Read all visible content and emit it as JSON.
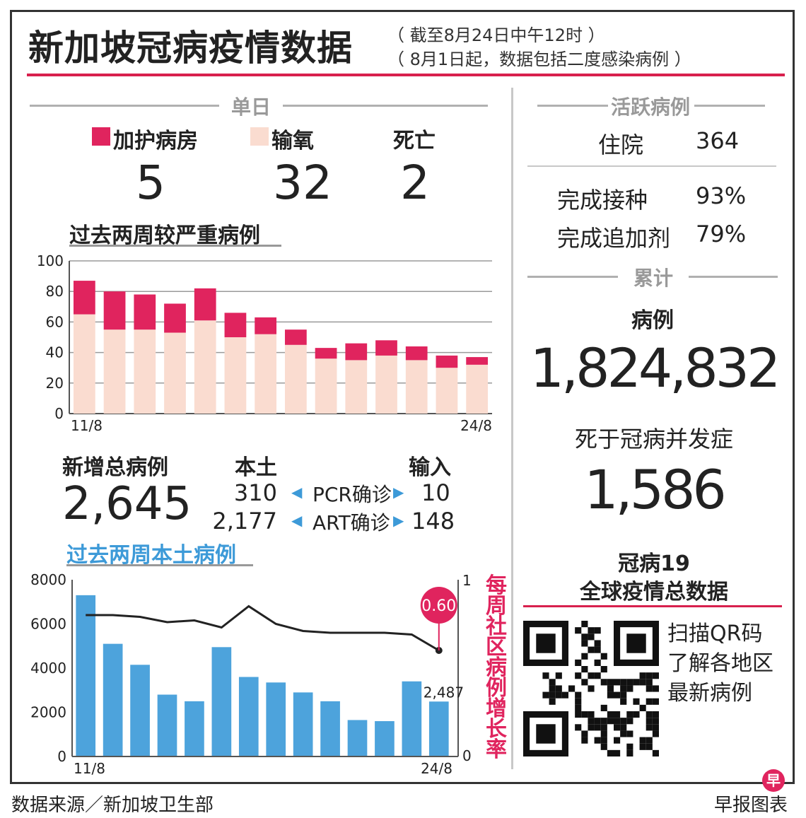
{
  "header": {
    "title": "新加坡冠病疫情数据",
    "sub1": "（ 截至8月24日中午12时 ）",
    "sub2": "（ 8月1日起，数据包括二度感染病例 ）"
  },
  "daily": {
    "heading": "单日",
    "items": [
      {
        "label": "加护病房",
        "value": "5"
      },
      {
        "label": "输氧",
        "value": "32"
      },
      {
        "label": "死亡",
        "value": "2"
      }
    ]
  },
  "severe_chart_title": "过去两周较严重病例",
  "new_cases": {
    "label": "新增总病例",
    "value": "2,645",
    "local_label": "本土",
    "import_label": "输入",
    "rows": [
      {
        "local": "310",
        "type": "PCR确诊",
        "import": "10"
      },
      {
        "local": "2,177",
        "type": "ART确诊",
        "import": "148"
      }
    ]
  },
  "local_chart_title": "过去两周本土病例",
  "growth_label": "每周社区病例增长率",
  "active": {
    "heading": "活跃病例",
    "hospital_label": "住院",
    "hospital_value": "364",
    "vacc_label": "完成接种",
    "vacc_value": "93%",
    "booster_label": "完成追加剂",
    "booster_value": "79%"
  },
  "cumulative": {
    "heading": "累计",
    "cases_label": "病例",
    "cases_value": "1,824,832",
    "deaths_label": "死于冠病并发症",
    "deaths_value": "1,586"
  },
  "global": {
    "line1": "冠病19",
    "line2": "全球疫情总数据",
    "qr_line1": "扫描QR码",
    "qr_line2": "了解各地区",
    "qr_line3": "最新病例"
  },
  "footer": {
    "source": "数据来源／新加坡卫生部",
    "credit": "早报图表",
    "logo_char": "早"
  },
  "colors": {
    "icu": "#e0245e",
    "oxygen": "#fadcd0",
    "local_bar": "#4da3dc",
    "accent": "#d8204d",
    "growth_label": "#e0245e"
  },
  "chart_data": [
    {
      "type": "bar",
      "stacked": true,
      "title": "过去两周较严重病例",
      "x_tick_labels": [
        "11/8",
        "24/8"
      ],
      "ylim": [
        0,
        100
      ],
      "yticks": [
        0,
        20,
        40,
        60,
        80,
        100
      ],
      "grid": true,
      "series": [
        {
          "name": "输氧",
          "values": [
            65,
            55,
            55,
            53,
            61,
            50,
            52,
            45,
            36,
            35,
            38,
            35,
            30,
            32
          ]
        },
        {
          "name": "加护病房",
          "values": [
            22,
            25,
            23,
            19,
            21,
            16,
            11,
            10,
            7,
            11,
            10,
            9,
            8,
            5
          ]
        }
      ]
    },
    {
      "type": "bar+line",
      "title": "过去两周本土病例",
      "x_tick_labels": [
        "11/8",
        "24/8"
      ],
      "ylim": [
        0,
        8000
      ],
      "yticks": [
        0,
        2000,
        4000,
        6000,
        8000
      ],
      "y2lim": [
        0,
        1
      ],
      "y2ticks": [
        0,
        1
      ],
      "y2label": "每周社区病例增长率",
      "bars": [
        7300,
        5100,
        4150,
        2800,
        2500,
        4950,
        3600,
        3350,
        2900,
        2500,
        1650,
        1600,
        3400,
        2487
      ],
      "growth_line": [
        0.8,
        0.8,
        0.79,
        0.76,
        0.77,
        0.73,
        0.85,
        0.75,
        0.71,
        0.7,
        0.7,
        0.7,
        0.69,
        0.6
      ],
      "labels": {
        "last_bar": "2,487",
        "last_growth": "0.60"
      }
    }
  ]
}
